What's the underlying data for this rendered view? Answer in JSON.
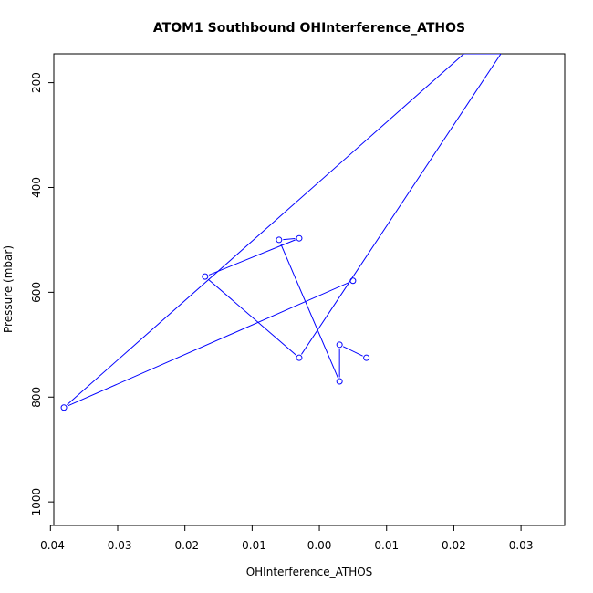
{
  "chart_data": {
    "type": "line",
    "title": "ATOM1 Southbound OHInterference_ATHOS",
    "xlabel": "OHInterference_ATHOS",
    "ylabel": "Pressure (mbar)",
    "xlim": [
      -0.0395,
      0.0365
    ],
    "ylim": [
      1045,
      145
    ],
    "y_reversed": true,
    "grid": false,
    "x_ticks": [
      -0.04,
      -0.03,
      -0.02,
      -0.01,
      0.0,
      0.01,
      0.02,
      0.03
    ],
    "x_tick_labels": [
      "-0.04",
      "-0.03",
      "-0.02",
      "-0.01",
      "0.00",
      "0.01",
      "0.02",
      "0.03"
    ],
    "y_ticks": [
      200,
      400,
      600,
      800,
      1000
    ],
    "y_tick_labels": [
      "200",
      "400",
      "600",
      "800",
      "1000"
    ],
    "series": [
      {
        "color": "#0000ff",
        "marker": "open-circle",
        "points": [
          {
            "x": 0.007,
            "y": 725
          },
          {
            "x": 0.003,
            "y": 700
          },
          {
            "x": 0.003,
            "y": 770
          },
          {
            "x": -0.006,
            "y": 500
          },
          {
            "x": -0.003,
            "y": 497
          },
          {
            "x": -0.017,
            "y": 570
          },
          {
            "x": -0.003,
            "y": 725
          },
          {
            "x": 0.027,
            "y": 145
          },
          {
            "x": 0.0215,
            "y": 145
          },
          {
            "x": -0.038,
            "y": 820
          },
          {
            "x": 0.005,
            "y": 578
          }
        ],
        "visible_markers": [
          0,
          1,
          2,
          3,
          4,
          5,
          6,
          9,
          10
        ]
      }
    ]
  }
}
